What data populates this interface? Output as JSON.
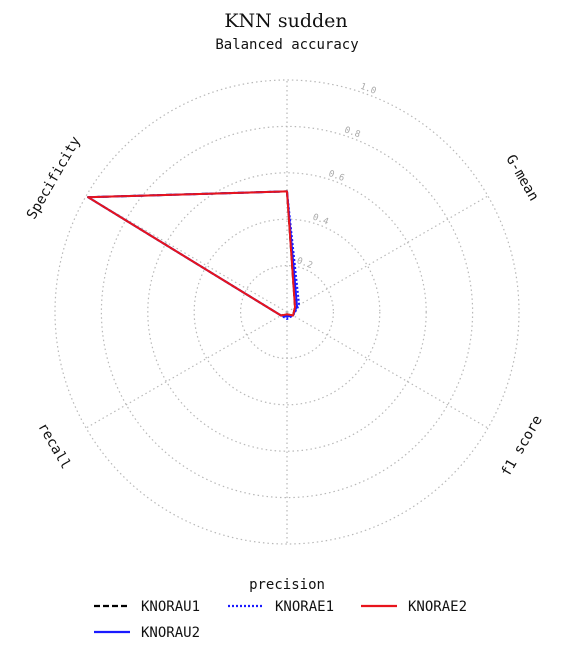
{
  "chart_data": {
    "type": "radar",
    "title": "KNN sudden",
    "axes": [
      "Balanced accuracy",
      "G-mean",
      "f1 score",
      "precision",
      "recall",
      "Specificity"
    ],
    "rlim": [
      0,
      1.0
    ],
    "rticks": [
      0.2,
      0.4,
      0.6,
      0.8,
      1.0
    ],
    "rtick_labels": [
      "0.2",
      "0.4",
      "0.6",
      "0.8",
      "1.0"
    ],
    "grid": true,
    "legend_position": "bottom",
    "series": [
      {
        "name": "KNORAU1",
        "values": [
          0.52,
          0.04,
          0.03,
          0.01,
          0.03,
          0.99
        ],
        "color": "#000000",
        "style": "dashed"
      },
      {
        "name": "KNORAU2",
        "values": [
          0.52,
          0.05,
          0.03,
          0.02,
          0.03,
          0.99
        ],
        "color": "#1a1aff",
        "style": "solid"
      },
      {
        "name": "KNORAE1",
        "values": [
          0.52,
          0.06,
          0.03,
          0.03,
          0.03,
          0.99
        ],
        "color": "#1a1aff",
        "style": "dotted"
      },
      {
        "name": "KNORAE2",
        "values": [
          0.52,
          0.04,
          0.03,
          0.01,
          0.03,
          0.99
        ],
        "color": "#e8141c",
        "style": "solid"
      }
    ]
  }
}
